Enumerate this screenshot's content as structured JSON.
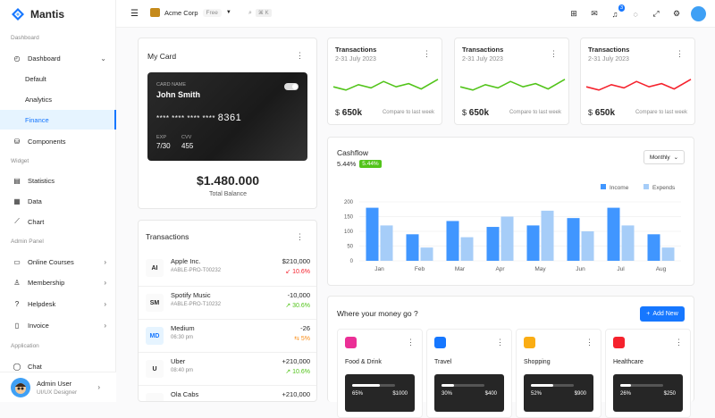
{
  "app": {
    "name": "Mantis"
  },
  "sidebar": {
    "sections": {
      "dashboard": "Dashboard",
      "widget": "Widget",
      "admin": "Admin Panel",
      "application": "Application"
    },
    "items": {
      "dashboard": "Dashboard",
      "default": "Default",
      "analytics": "Analytics",
      "finance": "Finance",
      "components": "Components",
      "statistics": "Statistics",
      "data": "Data",
      "chart": "Chart",
      "courses": "Online Courses",
      "membership": "Membership",
      "helpdesk": "Helpdesk",
      "invoice": "Invoice",
      "chat": "Chat"
    },
    "user": {
      "name": "Admin User",
      "role": "UI/UX Designer"
    }
  },
  "header": {
    "org": "Acme Corp",
    "plan": "Free",
    "search_key": "K",
    "notifications": "3"
  },
  "my_card": {
    "title": "My Card",
    "card_name_label": "CARD NAME",
    "card_name": "John Smith",
    "number_mask": "**** **** **** ****",
    "number_last": "8361",
    "exp_label": "EXP",
    "exp": "7/30",
    "cvv_label": "CVV",
    "cvv": "455",
    "balance": "$1.480.000",
    "balance_label": "Total Balance"
  },
  "stat_cards": [
    {
      "title": "Transactions",
      "date": "2-31 July 2023",
      "currency": "$",
      "amount": "650k",
      "compare": "Compare to last week",
      "color": "#52c41a"
    },
    {
      "title": "Transactions",
      "date": "2-31 July 2023",
      "currency": "$",
      "amount": "650k",
      "compare": "Compare to last week",
      "color": "#52c41a"
    },
    {
      "title": "Transactions",
      "date": "2-31 July 2023",
      "currency": "$",
      "amount": "650k",
      "compare": "Compare to last week",
      "color": "#f5222d"
    }
  ],
  "transactions": {
    "title": "Transactions",
    "rows": [
      {
        "icon": "AI",
        "name": "Apple Inc.",
        "sub": "#ABLE-PRO-T00232",
        "amount": "$210,000",
        "pct": "10.6%",
        "trend": "down",
        "color": "#f5222d"
      },
      {
        "icon": "SM",
        "name": "Spotify Music",
        "sub": "#ABLE-PRO-T10232",
        "amount": "-10,000",
        "pct": "30.6%",
        "trend": "up",
        "color": "#52c41a"
      },
      {
        "icon": "MD",
        "name": "Medium",
        "sub": "06:30 pm",
        "amount": "-26",
        "pct": "5%",
        "trend": "flat",
        "color": "#fa8c16"
      },
      {
        "icon": "U",
        "name": "Uber",
        "sub": "08:40 pm",
        "amount": "+210,000",
        "pct": "10.6%",
        "trend": "up",
        "color": "#52c41a"
      },
      {
        "icon": "",
        "name": "Ola Cabs",
        "sub": "",
        "amount": "+210,000",
        "pct": "",
        "trend": "",
        "color": "#52c41a"
      }
    ]
  },
  "cashflow": {
    "title": "Cashflow",
    "percent": "5.44%",
    "badge": "5.44%",
    "filter": "Monthly"
  },
  "chart_data": {
    "type": "bar",
    "categories": [
      "Jan",
      "Feb",
      "Mar",
      "Apr",
      "May",
      "Jun",
      "Jul",
      "Aug"
    ],
    "series": [
      {
        "name": "Income",
        "values": [
          180,
          90,
          135,
          115,
          120,
          145,
          180,
          90
        ],
        "color": "#4096ff"
      },
      {
        "name": "Expends",
        "values": [
          120,
          45,
          80,
          150,
          170,
          100,
          120,
          45
        ],
        "color": "#a6cdf8"
      }
    ],
    "yticks": [
      0,
      50,
      100,
      150,
      200
    ],
    "ylim": [
      0,
      200
    ],
    "legend": "top-right"
  },
  "money": {
    "title": "Where your money go ?",
    "add_label": "Add New",
    "cards": [
      {
        "icon": "food-icon",
        "name": "Food & Drink",
        "pct": "65%",
        "amt": "$1000",
        "progress": 0.65,
        "color": "#eb2f96"
      },
      {
        "icon": "travel-icon",
        "name": "Travel",
        "pct": "30%",
        "amt": "$400",
        "progress": 0.3,
        "color": "#1677ff"
      },
      {
        "icon": "shopping-icon",
        "name": "Shopping",
        "pct": "52%",
        "amt": "$900",
        "progress": 0.52,
        "color": "#faad14"
      },
      {
        "icon": "healthcare-icon",
        "name": "Healthcare",
        "pct": "26%",
        "amt": "$250",
        "progress": 0.26,
        "color": "#f5222d"
      }
    ]
  }
}
